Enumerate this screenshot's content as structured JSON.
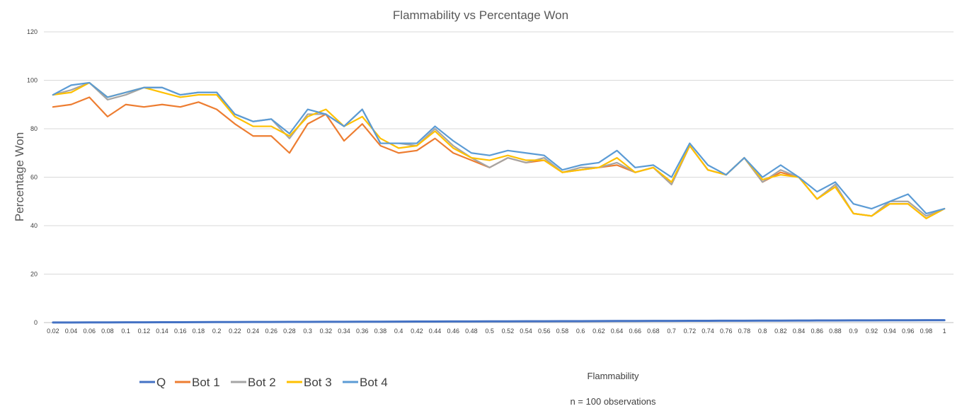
{
  "chart_data": {
    "type": "line",
    "title": "Flammability vs Percentage Won",
    "xlabel": "Flammability",
    "ylabel": "Percentage Won",
    "note": "n = 100 observations",
    "ylim": [
      0,
      120
    ],
    "yticks": [
      0,
      20,
      40,
      60,
      80,
      100,
      120
    ],
    "grid": true,
    "legend_position": "bottom-left",
    "categories": [
      "0.02",
      "0.04",
      "0.06",
      "0.08",
      "0.1",
      "0.12",
      "0.14",
      "0.16",
      "0.18",
      "0.2",
      "0.22",
      "0.24",
      "0.26",
      "0.28",
      "0.3",
      "0.32",
      "0.34",
      "0.36",
      "0.38",
      "0.4",
      "0.42",
      "0.44",
      "0.46",
      "0.48",
      "0.5",
      "0.52",
      "0.54",
      "0.56",
      "0.58",
      "0.6",
      "0.62",
      "0.64",
      "0.66",
      "0.68",
      "0.7",
      "0.72",
      "0.74",
      "0.76",
      "0.78",
      "0.8",
      "0.82",
      "0.84",
      "0.86",
      "0.88",
      "0.9",
      "0.92",
      "0.94",
      "0.96",
      "0.98",
      "1"
    ],
    "series": [
      {
        "name": "Q",
        "color": "#4472c4",
        "values": [
          0.02,
          0.04,
          0.06,
          0.08,
          0.1,
          0.12,
          0.14,
          0.16,
          0.18,
          0.2,
          0.22,
          0.24,
          0.26,
          0.28,
          0.3,
          0.32,
          0.34,
          0.36,
          0.38,
          0.4,
          0.42,
          0.44,
          0.46,
          0.48,
          0.5,
          0.52,
          0.54,
          0.56,
          0.58,
          0.6,
          0.62,
          0.64,
          0.66,
          0.68,
          0.7,
          0.72,
          0.74,
          0.76,
          0.78,
          0.8,
          0.82,
          0.84,
          0.86,
          0.88,
          0.9,
          0.92,
          0.94,
          0.96,
          0.98,
          1
        ]
      },
      {
        "name": "Bot 1",
        "color": "#ed7d31",
        "values": [
          89,
          90,
          93,
          85,
          90,
          89,
          90,
          89,
          91,
          88,
          82,
          77,
          77,
          70,
          82,
          86,
          75,
          82,
          73,
          70,
          71,
          76,
          70,
          67,
          64,
          68,
          66,
          67,
          62,
          63,
          64,
          65,
          62,
          64,
          57,
          73,
          63,
          61,
          68,
          58,
          62,
          60,
          51,
          56,
          45,
          44,
          49,
          49,
          43,
          47
        ]
      },
      {
        "name": "Bot 2",
        "color": "#a5a5a5",
        "values": [
          94,
          96,
          99,
          92,
          94,
          97,
          97,
          94,
          95,
          95,
          86,
          83,
          84,
          76,
          86,
          86,
          81,
          88,
          74,
          74,
          73,
          80,
          73,
          68,
          64,
          68,
          66,
          68,
          62,
          64,
          64,
          66,
          62,
          64,
          57,
          73,
          63,
          61,
          68,
          58,
          63,
          60,
          51,
          57,
          45,
          44,
          50,
          50,
          44,
          47
        ]
      },
      {
        "name": "Bot 3",
        "color": "#ffc000",
        "values": [
          94,
          95,
          99,
          93,
          95,
          97,
          95,
          93,
          94,
          94,
          85,
          81,
          81,
          77,
          85,
          88,
          81,
          85,
          76,
          72,
          73,
          79,
          72,
          68,
          67,
          69,
          67,
          67,
          62,
          63,
          64,
          68,
          62,
          64,
          58,
          73,
          63,
          61,
          68,
          59,
          61,
          60,
          51,
          56,
          45,
          44,
          49,
          49,
          43,
          47
        ]
      },
      {
        "name": "Bot 4",
        "color": "#5b9bd5",
        "values": [
          94,
          98,
          99,
          93,
          95,
          97,
          97,
          94,
          95,
          95,
          86,
          83,
          84,
          78,
          88,
          86,
          81,
          88,
          74,
          74,
          74,
          81,
          75,
          70,
          69,
          71,
          70,
          69,
          63,
          65,
          66,
          71,
          64,
          65,
          60,
          74,
          65,
          61,
          68,
          60,
          65,
          60,
          54,
          58,
          49,
          47,
          50,
          53,
          45,
          47
        ]
      }
    ]
  }
}
